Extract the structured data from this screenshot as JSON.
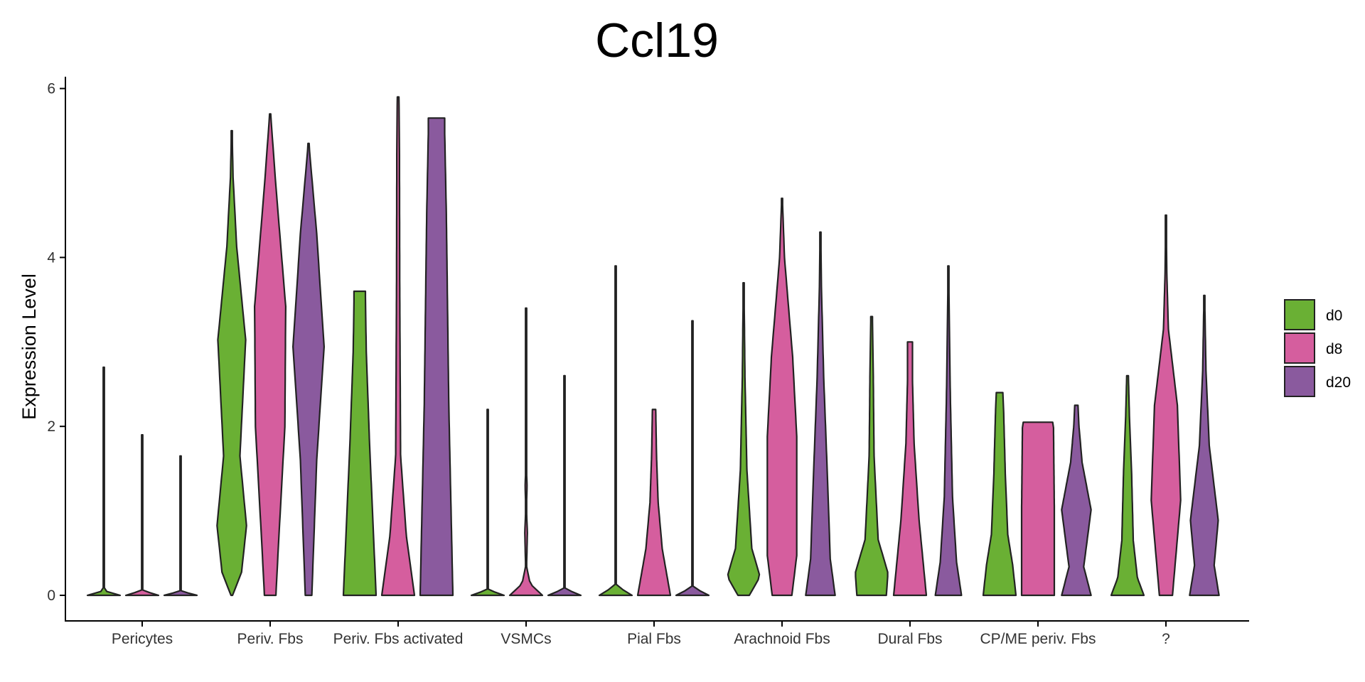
{
  "chart_data": {
    "type": "violin",
    "title": "Ccl19",
    "xlabel": "",
    "ylabel": "Expression Level",
    "ylim": [
      0,
      6.2
    ],
    "yticks": [
      0,
      2,
      4,
      6
    ],
    "grid": false,
    "legend_position": "right",
    "categories": [
      "Pericytes",
      "Periv. Fbs",
      "Periv. Fbs activated",
      "VSMCs",
      "Pial Fbs",
      "Arachnoid Fbs",
      "Dural Fbs",
      "CP/ME periv. Fbs",
      "?"
    ],
    "series": [
      {
        "name": "d0",
        "color": "#6ab034",
        "max": [
          2.7,
          5.5,
          3.6,
          2.2,
          3.9,
          3.7,
          3.3,
          2.4,
          2.6
        ],
        "profiles": [
          [
            [
              0,
              1
            ],
            [
              0.02,
              0.02
            ],
            [
              0.5,
              0.01
            ],
            [
              1,
              0.01
            ]
          ],
          [
            [
              0,
              0.05
            ],
            [
              0.05,
              0.6
            ],
            [
              0.15,
              0.9
            ],
            [
              0.3,
              0.5
            ],
            [
              0.55,
              0.85
            ],
            [
              0.75,
              0.3
            ],
            [
              0.9,
              0.08
            ],
            [
              1,
              0.02
            ]
          ],
          [
            [
              0,
              1
            ],
            [
              0.5,
              0.6
            ],
            [
              0.8,
              0.4
            ],
            [
              0.97,
              0.35
            ],
            [
              1,
              0.35
            ]
          ],
          [
            [
              0,
              1
            ],
            [
              0.03,
              0.02
            ],
            [
              0.5,
              0.01
            ],
            [
              1,
              0.01
            ]
          ],
          [
            [
              0,
              1
            ],
            [
              0.03,
              0.02
            ],
            [
              0.5,
              0.01
            ],
            [
              1,
              0.01
            ]
          ],
          [
            [
              0,
              0.35
            ],
            [
              0.06,
              1
            ],
            [
              0.15,
              0.5
            ],
            [
              0.4,
              0.2
            ],
            [
              0.7,
              0.08
            ],
            [
              1,
              0.02
            ]
          ],
          [
            [
              0,
              0.9
            ],
            [
              0.08,
              1
            ],
            [
              0.2,
              0.4
            ],
            [
              0.5,
              0.15
            ],
            [
              0.8,
              0.1
            ],
            [
              1,
              0.05
            ]
          ],
          [
            [
              0,
              1
            ],
            [
              0.15,
              0.8
            ],
            [
              0.3,
              0.5
            ],
            [
              0.6,
              0.35
            ],
            [
              0.9,
              0.25
            ],
            [
              1,
              0.2
            ]
          ],
          [
            [
              0,
              1
            ],
            [
              0.08,
              0.6
            ],
            [
              0.25,
              0.35
            ],
            [
              0.55,
              0.25
            ],
            [
              0.8,
              0.12
            ],
            [
              1,
              0.05
            ]
          ]
        ]
      },
      {
        "name": "d8",
        "color": "#d55e9e",
        "max": [
          1.9,
          5.7,
          5.9,
          3.4,
          2.2,
          4.7,
          3.0,
          2.05,
          4.5
        ],
        "profiles": [
          [
            [
              0,
              1
            ],
            [
              0.03,
              0.02
            ],
            [
              0.5,
              0.01
            ],
            [
              1,
              0.01
            ]
          ],
          [
            [
              0,
              0.35
            ],
            [
              0.1,
              0.5
            ],
            [
              0.35,
              0.9
            ],
            [
              0.6,
              0.95
            ],
            [
              0.85,
              0.35
            ],
            [
              1,
              0.03
            ]
          ],
          [
            [
              0,
              1
            ],
            [
              0.12,
              0.5
            ],
            [
              0.28,
              0.15
            ],
            [
              0.6,
              0.1
            ],
            [
              0.9,
              0.08
            ],
            [
              1,
              0.05
            ]
          ],
          [
            [
              0,
              1
            ],
            [
              0.04,
              0.25
            ],
            [
              0.1,
              0.03
            ],
            [
              0.22,
              0.08
            ],
            [
              0.3,
              0.02
            ],
            [
              0.38,
              0.06
            ],
            [
              0.45,
              0.01
            ],
            [
              1,
              0.01
            ]
          ],
          [
            [
              0,
              1
            ],
            [
              0.25,
              0.5
            ],
            [
              0.5,
              0.25
            ],
            [
              0.75,
              0.15
            ],
            [
              1,
              0.1
            ]
          ],
          [
            [
              0,
              0.6
            ],
            [
              0.1,
              0.9
            ],
            [
              0.4,
              0.9
            ],
            [
              0.6,
              0.65
            ],
            [
              0.85,
              0.15
            ],
            [
              1,
              0.02
            ]
          ],
          [
            [
              0,
              1
            ],
            [
              0.3,
              0.55
            ],
            [
              0.6,
              0.25
            ],
            [
              0.85,
              0.15
            ],
            [
              1,
              0.15
            ]
          ],
          [
            [
              0,
              1
            ],
            [
              0.5,
              1
            ],
            [
              0.97,
              0.95
            ],
            [
              1,
              0.9
            ]
          ],
          [
            [
              0,
              0.4
            ],
            [
              0.25,
              0.9
            ],
            [
              0.5,
              0.7
            ],
            [
              0.7,
              0.15
            ],
            [
              0.85,
              0.05
            ],
            [
              1,
              0.02
            ]
          ]
        ]
      },
      {
        "name": "d20",
        "color": "#8a5a9e",
        "max": [
          1.65,
          5.35,
          5.65,
          2.6,
          3.25,
          4.3,
          3.9,
          2.25,
          3.55
        ],
        "profiles": [
          [
            [
              0,
              1
            ],
            [
              0.03,
              0.02
            ],
            [
              0.5,
              0.01
            ],
            [
              1,
              0.01
            ]
          ],
          [
            [
              0,
              0.2
            ],
            [
              0.1,
              0.3
            ],
            [
              0.3,
              0.5
            ],
            [
              0.55,
              0.95
            ],
            [
              0.8,
              0.5
            ],
            [
              1,
              0.02
            ]
          ],
          [
            [
              0,
              1
            ],
            [
              0.4,
              0.75
            ],
            [
              0.8,
              0.6
            ],
            [
              0.97,
              0.5
            ],
            [
              1,
              0.5
            ]
          ],
          [
            [
              0,
              1
            ],
            [
              0.03,
              0.02
            ],
            [
              0.5,
              0.01
            ],
            [
              1,
              0.01
            ]
          ],
          [
            [
              0,
              1
            ],
            [
              0.03,
              0.02
            ],
            [
              0.5,
              0.01
            ],
            [
              1,
              0.01
            ]
          ],
          [
            [
              0,
              0.9
            ],
            [
              0.1,
              0.6
            ],
            [
              0.3,
              0.45
            ],
            [
              0.6,
              0.2
            ],
            [
              0.85,
              0.06
            ],
            [
              1,
              0.02
            ]
          ],
          [
            [
              0,
              0.8
            ],
            [
              0.1,
              0.5
            ],
            [
              0.3,
              0.25
            ],
            [
              0.6,
              0.12
            ],
            [
              0.85,
              0.05
            ],
            [
              1,
              0.02
            ]
          ],
          [
            [
              0,
              0.9
            ],
            [
              0.15,
              0.45
            ],
            [
              0.45,
              0.9
            ],
            [
              0.7,
              0.35
            ],
            [
              0.9,
              0.15
            ],
            [
              1,
              0.1
            ]
          ],
          [
            [
              0,
              0.9
            ],
            [
              0.1,
              0.6
            ],
            [
              0.25,
              0.85
            ],
            [
              0.5,
              0.3
            ],
            [
              0.75,
              0.1
            ],
            [
              1,
              0.02
            ]
          ]
        ]
      }
    ]
  }
}
